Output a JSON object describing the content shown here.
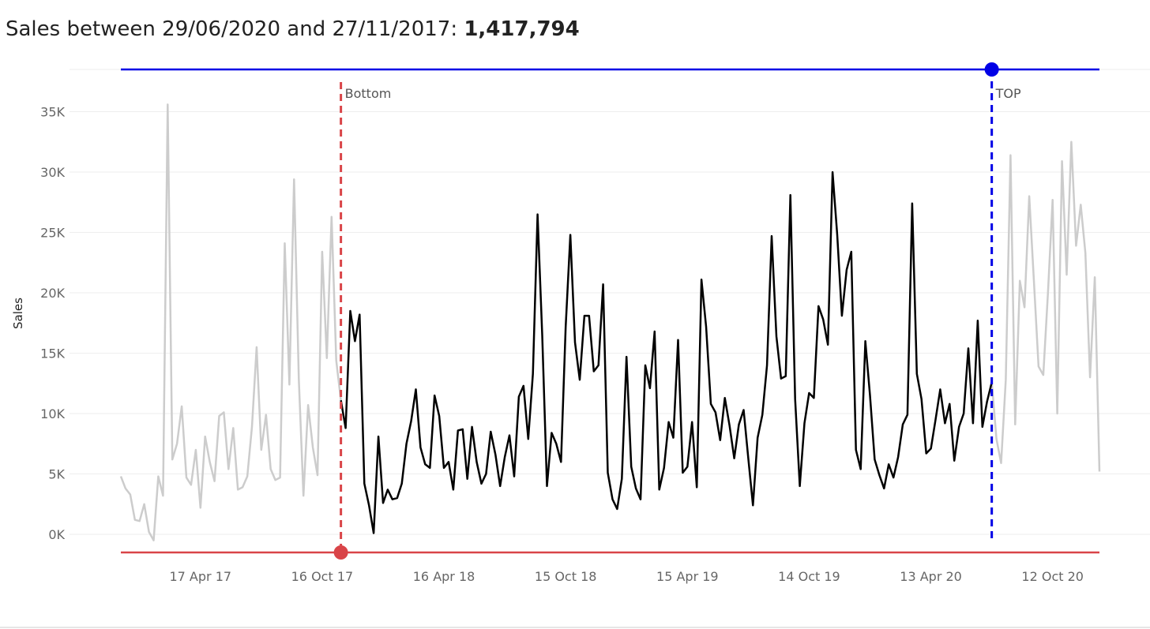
{
  "header": {
    "title_prefix": "Sales between 29/06/2020 and 27/11/2017: ",
    "title_total": "1,417,794"
  },
  "chart_data": {
    "type": "line",
    "ylabel": "Sales",
    "ylim": [
      -1500,
      38500
    ],
    "yticks": [
      {
        "value": 0,
        "label": "0K"
      },
      {
        "value": 5000,
        "label": "5K"
      },
      {
        "value": 10000,
        "label": "10K"
      },
      {
        "value": 15000,
        "label": "15K"
      },
      {
        "value": 20000,
        "label": "20K"
      },
      {
        "value": 25000,
        "label": "25K"
      },
      {
        "value": 30000,
        "label": "30K"
      },
      {
        "value": 35000,
        "label": "35K"
      }
    ],
    "xticks": [
      {
        "index": 17,
        "label": "17 Apr 17"
      },
      {
        "index": 43,
        "label": "16 Oct 17"
      },
      {
        "index": 69,
        "label": "16 Apr 18"
      },
      {
        "index": 95,
        "label": "15 Oct 18"
      },
      {
        "index": 121,
        "label": "15 Apr 19"
      },
      {
        "index": 147,
        "label": "14 Oct 19"
      },
      {
        "index": 173,
        "label": "13 Apr 20"
      },
      {
        "index": 199,
        "label": "12 Oct 20"
      }
    ],
    "x_range": [
      0,
      209
    ],
    "series": [
      {
        "name": "Sales",
        "values": [
          4800,
          3800,
          3300,
          1200,
          1100,
          2500,
          200,
          -500,
          4800,
          3200,
          35600,
          6200,
          7500,
          10600,
          4700,
          4100,
          7000,
          2200,
          8100,
          6000,
          4400,
          9800,
          10100,
          5400,
          8800,
          3700,
          3900,
          4800,
          8900,
          15500,
          7000,
          9900,
          5400,
          4500,
          4700,
          24100,
          12400,
          29400,
          12900,
          3200,
          10700,
          7200,
          4900,
          23400,
          14600,
          26300,
          14400,
          11100,
          8800,
          18500,
          16000,
          18200,
          4200,
          2400,
          100,
          8100,
          2600,
          3700,
          2900,
          3000,
          4200,
          7500,
          9400,
          12000,
          7200,
          5800,
          5500,
          11500,
          9800,
          5500,
          6000,
          3700,
          8600,
          8700,
          4600,
          8900,
          6000,
          4200,
          5000,
          8500,
          6600,
          4000,
          6400,
          8200,
          4800,
          11400,
          12300,
          7900,
          13300,
          26500,
          16500,
          4000,
          8400,
          7500,
          6000,
          17200,
          24800,
          15900,
          12800,
          18100,
          18100,
          13500,
          14000,
          20700,
          5100,
          2900,
          2100,
          4600,
          14700,
          5600,
          3800,
          2900,
          14000,
          12100,
          16800,
          3700,
          5500,
          9300,
          8000,
          16100,
          5100,
          5600,
          9300,
          3900,
          21100,
          17200,
          10800,
          10100,
          7800,
          11300,
          9000,
          6300,
          9100,
          10300,
          6300,
          2400,
          8000,
          9900,
          14000,
          24700,
          16400,
          12900,
          13100,
          28100,
          11200,
          4000,
          9200,
          11700,
          11300,
          18900,
          17800,
          15700,
          30000,
          24800,
          18100,
          21900,
          23400,
          7000,
          5400,
          16000,
          11500,
          6200,
          4900,
          3800,
          5800,
          4700,
          6400,
          9100,
          9900,
          27400,
          13300,
          11200,
          6700,
          7100,
          9500,
          12000,
          9200,
          10800,
          6100,
          8900,
          10000,
          15400,
          9200,
          17700,
          8900,
          11000,
          12600,
          7900,
          5900,
          12800,
          31400,
          9100,
          21000,
          18800,
          28000,
          21000,
          13900,
          13200,
          20000,
          27700,
          10000,
          30900,
          21500,
          32500,
          23900,
          27300,
          23300,
          13000,
          21300,
          5200
        ]
      }
    ],
    "highlight_range": {
      "start_index": 47,
      "end_index": 186
    },
    "range_controls": [
      {
        "name": "Bottom",
        "label": "Bottom",
        "color": "#d94448",
        "index": 47
      },
      {
        "name": "TOP",
        "label": "TOP",
        "color": "#0000e6",
        "index": 186
      }
    ],
    "colors": {
      "active_line": "#000000",
      "inactive_line": "#cccccc",
      "gridline": "#eeeeee",
      "bottom_marker": "#d94448",
      "top_marker": "#0000e6"
    }
  }
}
